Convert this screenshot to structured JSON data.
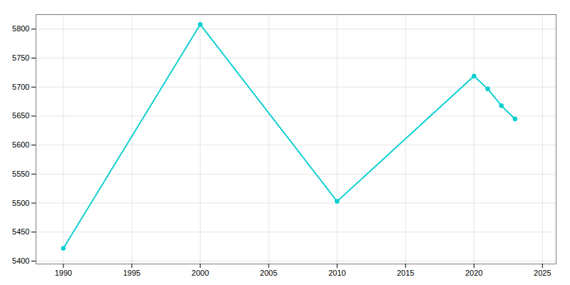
{
  "chart_data": {
    "type": "line",
    "x": [
      1990,
      2000,
      2010,
      2020,
      2021,
      2022,
      2023
    ],
    "values": [
      5422,
      5808,
      5503,
      5719,
      5697,
      5668,
      5645
    ],
    "color": "#00CED1",
    "marker": "circle",
    "xlim": [
      1988,
      2026
    ],
    "xticks": [
      1990,
      1995,
      2000,
      2005,
      2010,
      2015,
      2020,
      2025
    ],
    "ylim": [
      5395,
      5825
    ],
    "yticks": [
      5400,
      5450,
      5500,
      5550,
      5600,
      5650,
      5700,
      5750,
      5800
    ],
    "grid": true
  }
}
